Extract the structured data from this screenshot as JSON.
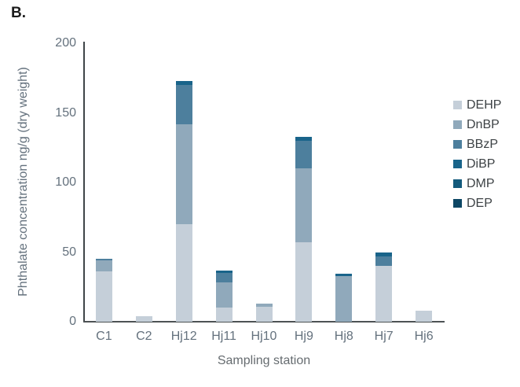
{
  "panel_label": "B.",
  "chart_data": {
    "type": "bar",
    "stacked": true,
    "title": "",
    "xlabel": "Sampling station",
    "ylabel": "Phthalate concentration ng/g (dry weight)",
    "ylim": [
      0,
      200
    ],
    "yticks": [
      0,
      50,
      100,
      150,
      200
    ],
    "grid": false,
    "legend_position": "right",
    "categories": [
      "C1",
      "C2",
      "Hj12",
      "Hj11",
      "Hj10",
      "Hj9",
      "Hj8",
      "Hj7",
      "Hj6"
    ],
    "series": [
      {
        "name": "DEHP",
        "color": "#c5cfd9",
        "values": [
          36,
          4,
          70,
          10,
          10.5,
          57,
          0,
          40,
          8
        ]
      },
      {
        "name": "DnBP",
        "color": "#90a9bb",
        "values": [
          8,
          0,
          72,
          18,
          2.5,
          53,
          33,
          0,
          0
        ]
      },
      {
        "name": "BBzP",
        "color": "#4d7f9d",
        "values": [
          1.5,
          0,
          28,
          7,
          0,
          20,
          0,
          7,
          0
        ]
      },
      {
        "name": "DiBP",
        "color": "#19648a",
        "values": [
          0,
          0,
          3,
          1.5,
          0,
          3,
          1.5,
          2.5,
          0
        ]
      },
      {
        "name": "DMP",
        "color": "#135a7c",
        "values": [
          0,
          0,
          0,
          0,
          0,
          0,
          0,
          0,
          0
        ]
      },
      {
        "name": "DEP",
        "color": "#0d4765",
        "values": [
          0,
          0,
          0,
          0,
          0,
          0,
          0,
          0,
          0
        ]
      }
    ],
    "totals": {
      "C1": 45.5,
      "C2": 4,
      "Hj12": 173,
      "Hj11": 36.5,
      "Hj10": 13,
      "Hj9": 133,
      "Hj8": 34.5,
      "Hj7": 49.5,
      "Hj6": 8
    }
  }
}
